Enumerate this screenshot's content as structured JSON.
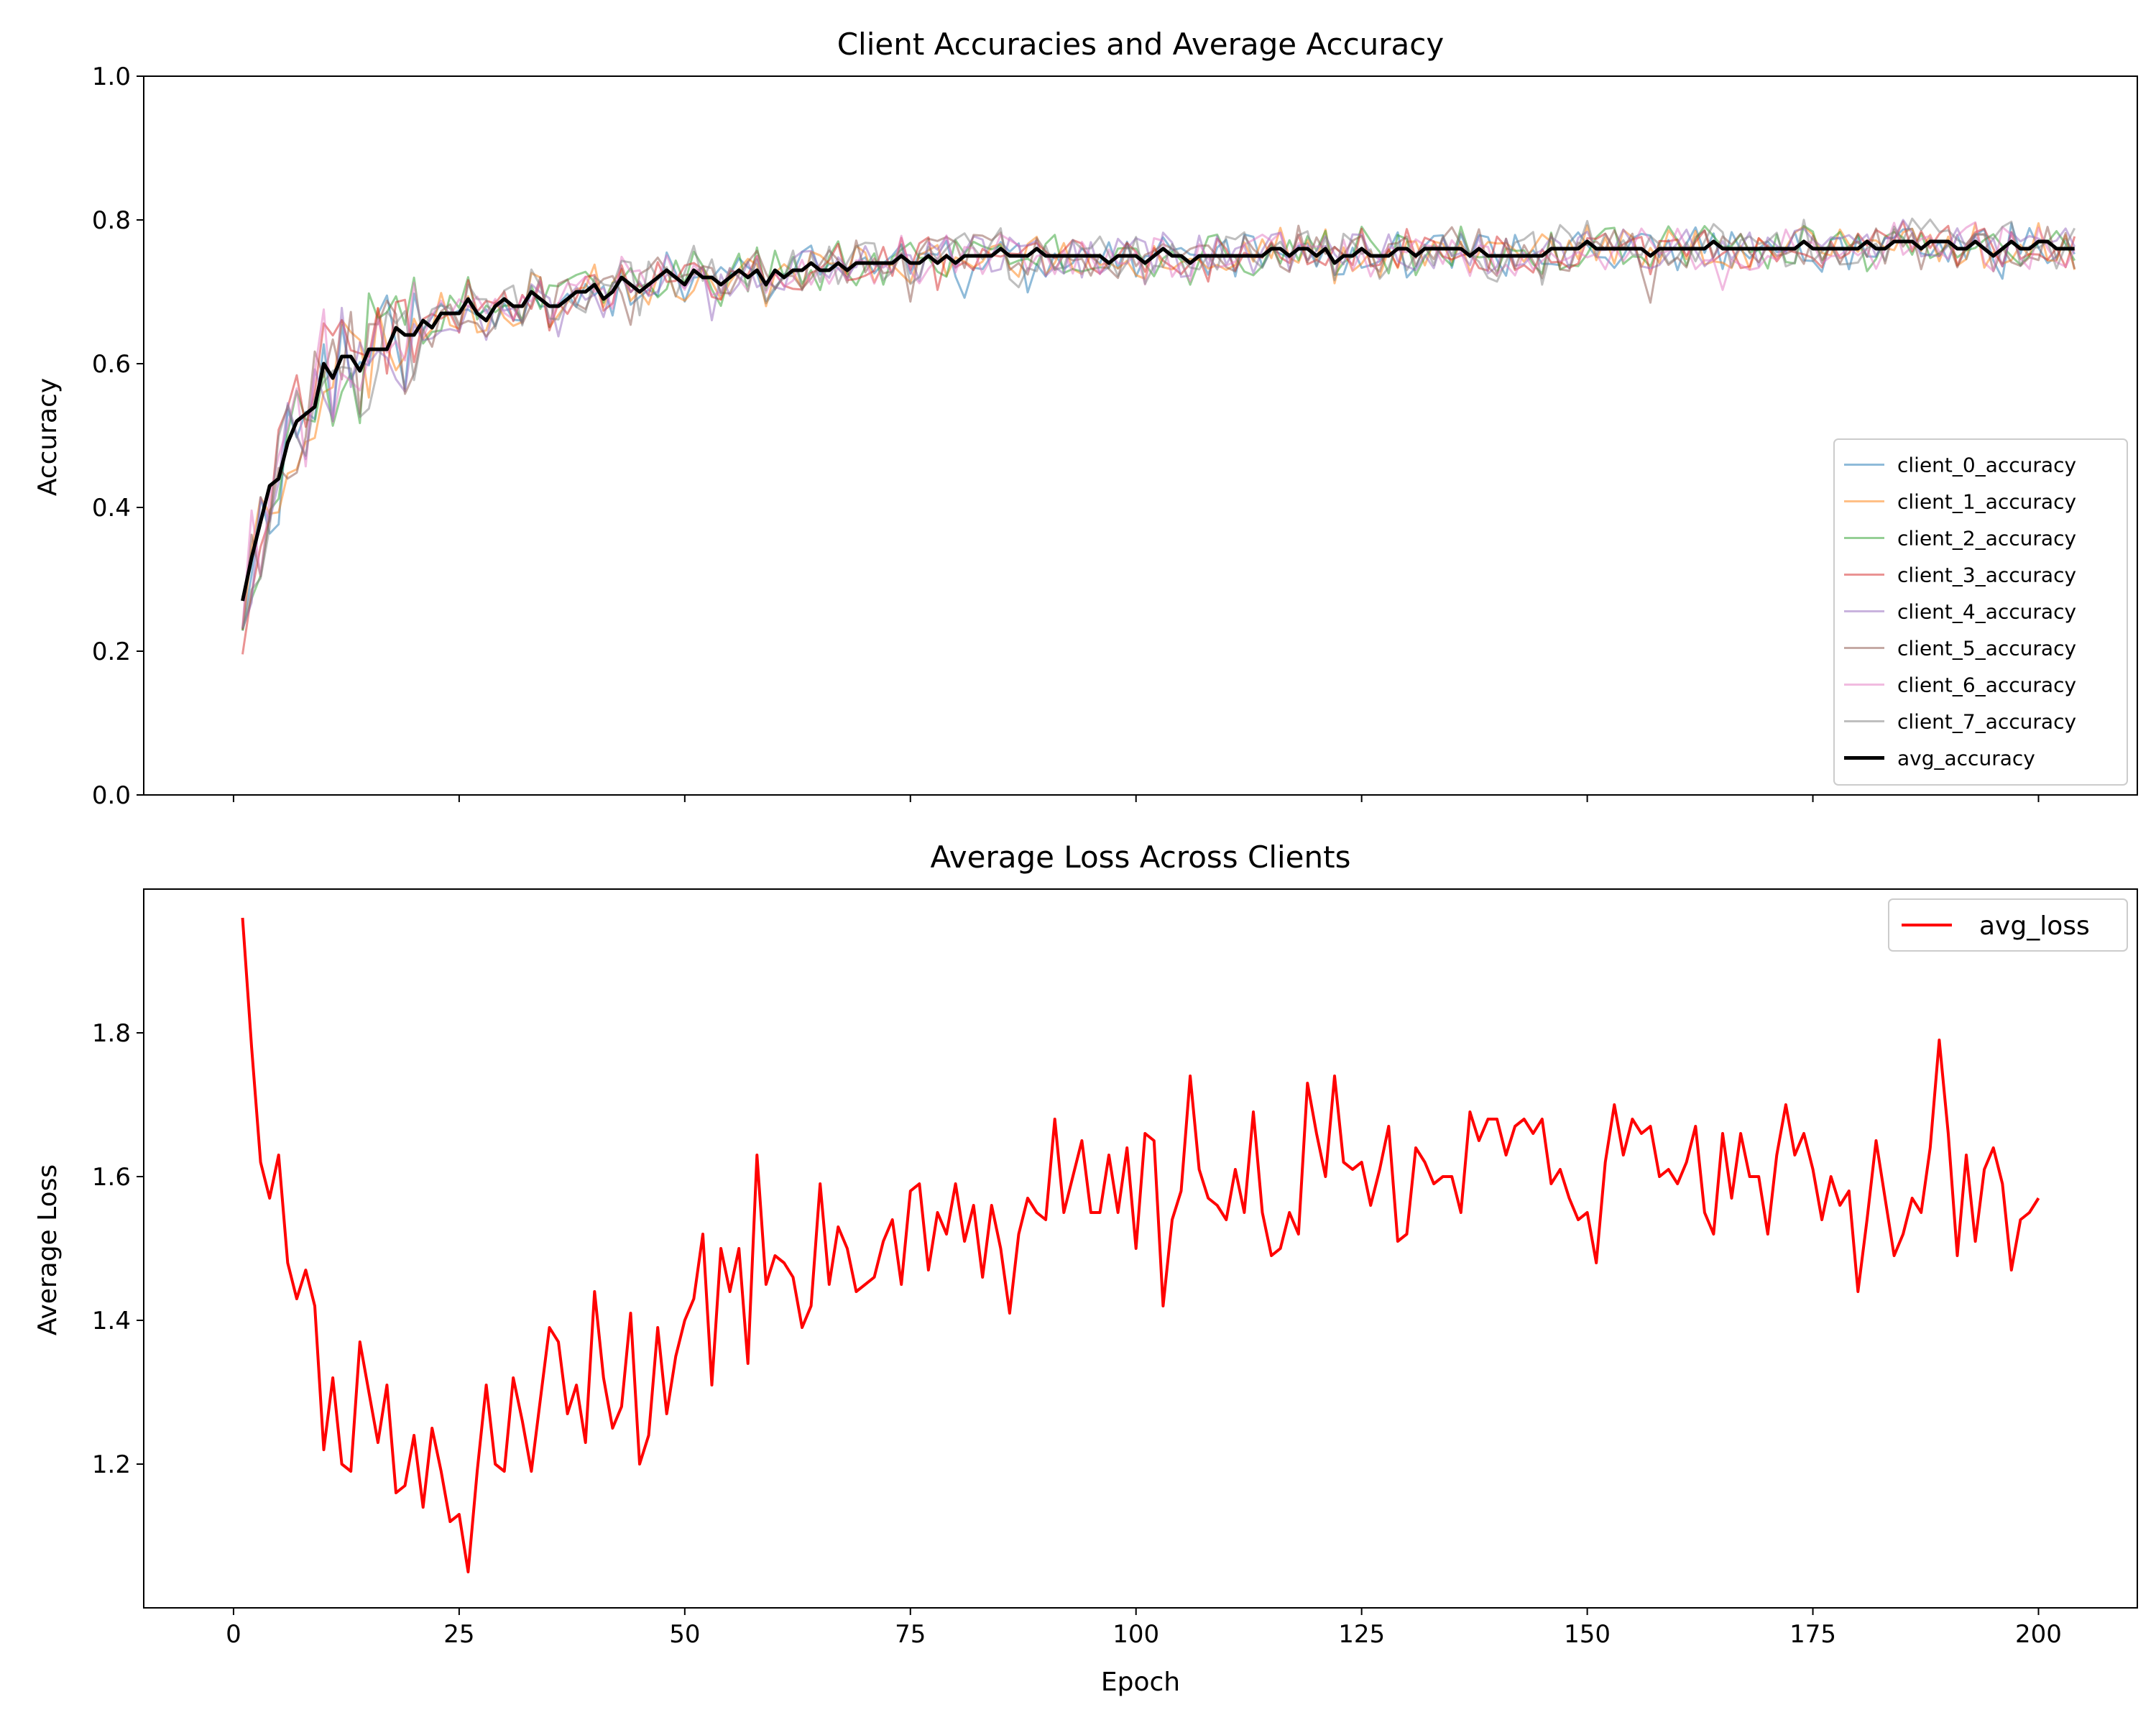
{
  "chart_data": [
    {
      "type": "line",
      "title": "Client Accuracies and Average Accuracy",
      "xlabel": "",
      "ylabel": "Accuracy",
      "xlim": [
        -9.95,
        210.95
      ],
      "ylim": [
        0.0,
        1.0
      ],
      "yticks": [
        0.0,
        0.2,
        0.4,
        0.6,
        0.8,
        1.0
      ],
      "ytick_labels": [
        "0.0",
        "0.2",
        "0.4",
        "0.6",
        "0.8",
        "1.0"
      ],
      "xticks": [
        0,
        25,
        50,
        75,
        100,
        125,
        150,
        175,
        200
      ],
      "show_xtick_labels": false,
      "grid": false,
      "legend_placement": "lower-right",
      "x_start": 1,
      "x_step": 1,
      "series": [
        {
          "name": "client_0_accuracy",
          "color": "#1f77b4",
          "alpha": 0.5,
          "width": 1.5,
          "noise": 0.015,
          "seed": 11
        },
        {
          "name": "client_1_accuracy",
          "color": "#ff7f0e",
          "alpha": 0.5,
          "width": 1.5,
          "noise": 0.015,
          "seed": 23
        },
        {
          "name": "client_2_accuracy",
          "color": "#2ca02c",
          "alpha": 0.5,
          "width": 1.5,
          "noise": 0.016,
          "seed": 37
        },
        {
          "name": "client_3_accuracy",
          "color": "#d62728",
          "alpha": 0.5,
          "width": 1.5,
          "noise": 0.014,
          "seed": 41
        },
        {
          "name": "client_4_accuracy",
          "color": "#9467bd",
          "alpha": 0.5,
          "width": 1.5,
          "noise": 0.015,
          "seed": 53
        },
        {
          "name": "client_5_accuracy",
          "color": "#8c564b",
          "alpha": 0.5,
          "width": 1.5,
          "noise": 0.016,
          "seed": 67
        },
        {
          "name": "client_6_accuracy",
          "color": "#e377c2",
          "alpha": 0.5,
          "width": 1.5,
          "noise": 0.015,
          "seed": 79
        },
        {
          "name": "client_7_accuracy",
          "color": "#7f7f7f",
          "alpha": 0.5,
          "width": 1.5,
          "noise": 0.017,
          "seed": 97
        },
        {
          "name": "avg_accuracy",
          "color": "#000000",
          "alpha": 1.0,
          "width": 2.5,
          "noise": 0,
          "seed": 0,
          "is_average": true
        }
      ],
      "avg_values": [
        0.27,
        0.33,
        0.38,
        0.43,
        0.44,
        0.49,
        0.52,
        0.53,
        0.54,
        0.6,
        0.58,
        0.61,
        0.61,
        0.59,
        0.62,
        0.62,
        0.62,
        0.65,
        0.64,
        0.64,
        0.66,
        0.65,
        0.67,
        0.67,
        0.67,
        0.69,
        0.67,
        0.66,
        0.68,
        0.69,
        0.68,
        0.68,
        0.7,
        0.69,
        0.68,
        0.68,
        0.69,
        0.7,
        0.7,
        0.71,
        0.69,
        0.7,
        0.72,
        0.71,
        0.7,
        0.71,
        0.72,
        0.73,
        0.72,
        0.71,
        0.73,
        0.72,
        0.72,
        0.71,
        0.72,
        0.73,
        0.72,
        0.73,
        0.71,
        0.73,
        0.72,
        0.73,
        0.73,
        0.74,
        0.73,
        0.73,
        0.74,
        0.73,
        0.74,
        0.74,
        0.74,
        0.74,
        0.74,
        0.75,
        0.74,
        0.74,
        0.75,
        0.74,
        0.75,
        0.74,
        0.75,
        0.75,
        0.75,
        0.75,
        0.76,
        0.75,
        0.75,
        0.75,
        0.76,
        0.75,
        0.75,
        0.75,
        0.75,
        0.75,
        0.75,
        0.75,
        0.74,
        0.75,
        0.75,
        0.75,
        0.74,
        0.75,
        0.76,
        0.75,
        0.75,
        0.74,
        0.75,
        0.75,
        0.75,
        0.75,
        0.75,
        0.75,
        0.75,
        0.75,
        0.76,
        0.76,
        0.75,
        0.76,
        0.76,
        0.75,
        0.76,
        0.74,
        0.75,
        0.75,
        0.76,
        0.75,
        0.75,
        0.75,
        0.76,
        0.76,
        0.75,
        0.76,
        0.76,
        0.76,
        0.76,
        0.76,
        0.75,
        0.76,
        0.75,
        0.75,
        0.75,
        0.75,
        0.75,
        0.75,
        0.75,
        0.76,
        0.76,
        0.76,
        0.76,
        0.77,
        0.76,
        0.76,
        0.76,
        0.76,
        0.76,
        0.76,
        0.75,
        0.76,
        0.76,
        0.76,
        0.76,
        0.76,
        0.76,
        0.77,
        0.76,
        0.76,
        0.76,
        0.76,
        0.76,
        0.76,
        0.76,
        0.76,
        0.76,
        0.77,
        0.76,
        0.76,
        0.76,
        0.76,
        0.76,
        0.76,
        0.77,
        0.76,
        0.76,
        0.77,
        0.77,
        0.77,
        0.76,
        0.77,
        0.77,
        0.77,
        0.76,
        0.76,
        0.77,
        0.76,
        0.75,
        0.76,
        0.77,
        0.76,
        0.76,
        0.77,
        0.77,
        0.76,
        0.76,
        0.76
      ]
    },
    {
      "type": "line",
      "title": "Average Loss Across Clients",
      "xlabel": "Epoch",
      "ylabel": "Average Loss",
      "xlim": [
        -9.95,
        210.95
      ],
      "ylim": [
        1.0,
        2.0
      ],
      "yticks": [
        1.2,
        1.4,
        1.6,
        1.8
      ],
      "ytick_labels": [
        "1.2",
        "1.4",
        "1.6",
        "1.8"
      ],
      "xticks": [
        0,
        25,
        50,
        75,
        100,
        125,
        150,
        175,
        200
      ],
      "xtick_labels": [
        "0",
        "25",
        "50",
        "75",
        "100",
        "125",
        "150",
        "175",
        "200"
      ],
      "show_xtick_labels": true,
      "grid": false,
      "legend_placement": "upper-right",
      "x_start": 1,
      "x_step": 1,
      "series": [
        {
          "name": "avg_loss",
          "color": "#ff0000",
          "alpha": 1.0,
          "width": 2,
          "values": [
            1.96,
            1.78,
            1.62,
            1.57,
            1.63,
            1.48,
            1.43,
            1.47,
            1.42,
            1.22,
            1.32,
            1.2,
            1.19,
            1.37,
            1.3,
            1.23,
            1.31,
            1.16,
            1.17,
            1.24,
            1.14,
            1.25,
            1.19,
            1.12,
            1.13,
            1.05,
            1.19,
            1.31,
            1.2,
            1.19,
            1.32,
            1.26,
            1.19,
            1.29,
            1.39,
            1.37,
            1.27,
            1.31,
            1.23,
            1.44,
            1.32,
            1.25,
            1.28,
            1.41,
            1.2,
            1.24,
            1.39,
            1.27,
            1.35,
            1.4,
            1.43,
            1.52,
            1.31,
            1.5,
            1.44,
            1.5,
            1.34,
            1.63,
            1.45,
            1.49,
            1.48,
            1.46,
            1.39,
            1.42,
            1.59,
            1.45,
            1.53,
            1.5,
            1.44,
            1.45,
            1.46,
            1.51,
            1.54,
            1.45,
            1.58,
            1.59,
            1.47,
            1.55,
            1.52,
            1.59,
            1.51,
            1.56,
            1.46,
            1.56,
            1.5,
            1.41,
            1.52,
            1.57,
            1.55,
            1.54,
            1.68,
            1.55,
            1.6,
            1.65,
            1.55,
            1.55,
            1.63,
            1.55,
            1.64,
            1.5,
            1.66,
            1.65,
            1.42,
            1.54,
            1.58,
            1.74,
            1.61,
            1.57,
            1.56,
            1.54,
            1.61,
            1.55,
            1.69,
            1.55,
            1.49,
            1.5,
            1.55,
            1.52,
            1.73,
            1.66,
            1.6,
            1.74,
            1.62,
            1.61,
            1.62,
            1.56,
            1.61,
            1.67,
            1.51,
            1.52,
            1.64,
            1.62,
            1.59,
            1.6,
            1.6,
            1.55,
            1.69,
            1.65,
            1.68,
            1.68,
            1.63,
            1.67,
            1.68,
            1.66,
            1.68,
            1.59,
            1.61,
            1.57,
            1.54,
            1.55,
            1.48,
            1.62,
            1.7,
            1.63,
            1.68,
            1.66,
            1.67,
            1.6,
            1.61,
            1.59,
            1.62,
            1.67,
            1.55,
            1.52,
            1.66,
            1.57,
            1.66,
            1.6,
            1.6,
            1.52,
            1.63,
            1.7,
            1.63,
            1.66,
            1.61,
            1.54,
            1.6,
            1.56,
            1.58,
            1.44,
            1.54,
            1.65,
            1.57,
            1.49,
            1.52,
            1.57,
            1.55,
            1.64,
            1.79,
            1.66,
            1.49,
            1.63,
            1.51,
            1.61,
            1.64,
            1.59,
            1.47,
            1.54,
            1.55,
            1.57
          ]
        }
      ]
    }
  ]
}
